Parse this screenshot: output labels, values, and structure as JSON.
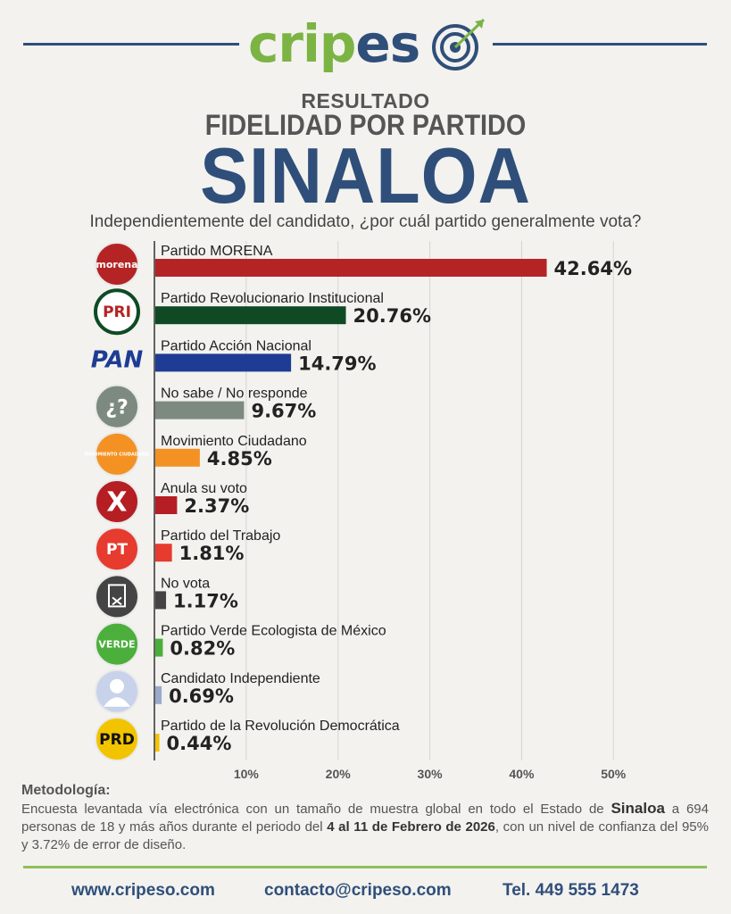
{
  "brand": {
    "name_part1": "crip",
    "name_part2": "es",
    "name_part3": "o"
  },
  "header": {
    "line1": "RESULTADO",
    "line2": "FIDELIDAD POR PARTIDO",
    "state": "SINALOA",
    "question": "Independientemente del candidato, ¿por cuál partido generalmente vota?"
  },
  "chart_data": {
    "type": "bar",
    "orientation": "horizontal",
    "categories": [
      "Partido MORENA",
      "Partido Revolucionario Institucional",
      "Partido Acción Nacional",
      "No sabe / No responde",
      "Movimiento Ciudadano",
      "Anula su voto",
      "Partido del Trabajo",
      "No vota",
      "Partido Verde Ecologista de México",
      "Candidato Independiente",
      "Partido de la Revolución Democrática"
    ],
    "values": [
      42.64,
      20.76,
      14.79,
      9.67,
      4.85,
      2.37,
      1.81,
      1.17,
      0.82,
      0.69,
      0.44
    ],
    "value_labels": [
      "42.64%",
      "20.76%",
      "14.79%",
      "9.67%",
      "4.85%",
      "2.37%",
      "1.81%",
      "1.17%",
      "0.82%",
      "0.69%",
      "0.44%"
    ],
    "colors": [
      "#b52424",
      "#0f4a25",
      "#1f3c94",
      "#7d8a7f",
      "#f39223",
      "#b51e22",
      "#e63b2e",
      "#444444",
      "#4caf3c",
      "#9aa9cc",
      "#f2c400"
    ],
    "icons": [
      "morena-logo",
      "pri-logo",
      "pan-logo",
      "question-icon",
      "movimiento-ciudadano-logo",
      "anula-x-icon",
      "pt-logo",
      "no-vota-icon",
      "verde-logo",
      "person-icon",
      "prd-logo"
    ],
    "icon_texts": [
      "morena",
      "PRI",
      "PAN",
      "¿?",
      "MOVIMIENTO CIUDADANO",
      "X",
      "PT",
      "",
      "VERDE",
      "",
      "PRD"
    ],
    "xlim": [
      0,
      55
    ],
    "xticks": [
      10,
      20,
      30,
      40,
      50
    ],
    "xtick_labels": [
      "10%",
      "20%",
      "30%",
      "40%",
      "50%"
    ],
    "grid": true,
    "title": "",
    "xlabel": "",
    "ylabel": ""
  },
  "methodology": {
    "title": "Metodología:",
    "text_a": "Encuesta levantada vía electrónica con un tamaño de muestra global en todo el Estado de ",
    "state": "Sinaloa",
    "text_b": " a 694 personas de 18 y más años durante el periodo del ",
    "dates": "4 al 11 de Febrero de 2026",
    "text_c": ", con un nivel de confianza del 95% y 3.72% de error de diseño."
  },
  "footer": {
    "website": "www.cripeso.com",
    "email": "contacto@cripeso.com",
    "phone": "Tel. 449 555 1473"
  },
  "colors": {
    "brand_blue": "#2f4f7a",
    "brand_green": "#7bb443"
  }
}
